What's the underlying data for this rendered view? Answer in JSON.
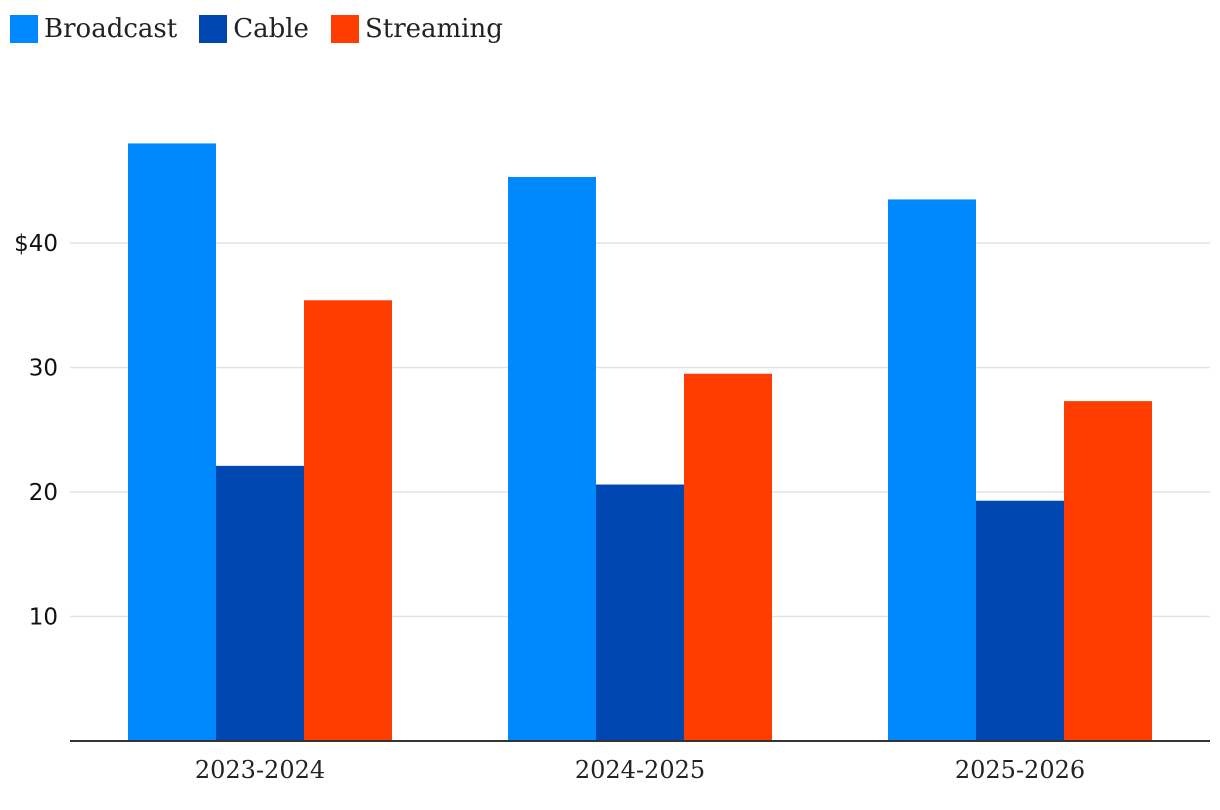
{
  "chart_data": {
    "type": "bar",
    "title": "",
    "xlabel": "",
    "ylabel": "",
    "categories": [
      "2023-2024",
      "2024-2025",
      "2025-2026"
    ],
    "series": [
      {
        "name": "Broadcast",
        "color": "#0088FF",
        "values": [
          48.0,
          45.3,
          43.5
        ]
      },
      {
        "name": "Cable",
        "color": "#0047B2",
        "values": [
          22.1,
          20.6,
          19.3
        ]
      },
      {
        "name": "Streaming",
        "color": "#FF3D00",
        "values": [
          35.4,
          29.5,
          27.3
        ]
      }
    ],
    "yticks": [
      10,
      20,
      30,
      40
    ],
    "ytick_labels": [
      "10",
      "20",
      "30",
      "$40"
    ],
    "ylim": [
      0,
      48
    ],
    "grid": true,
    "legend_position": "top-left"
  }
}
